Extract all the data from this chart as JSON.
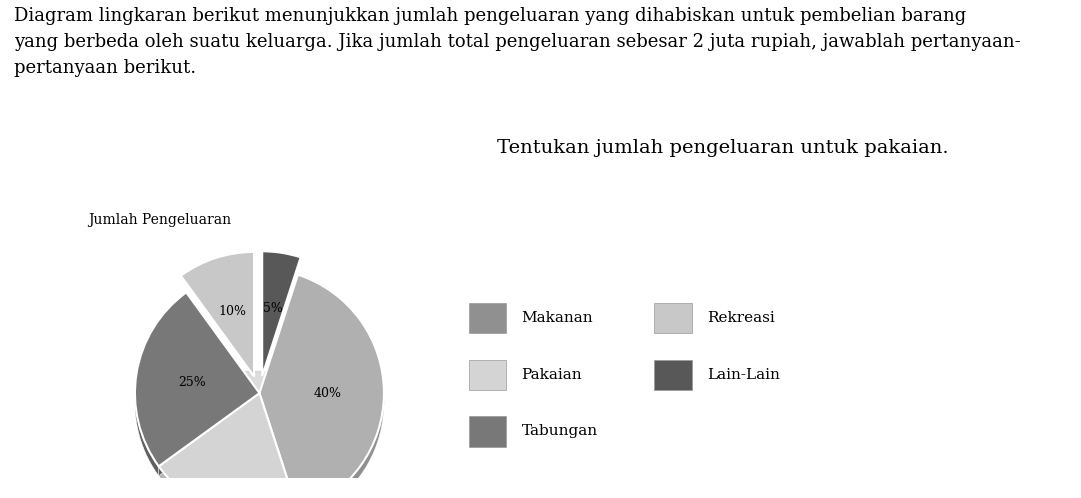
{
  "title_text": "Diagram lingkaran berikut menunjukkan jumlah pengeluaran yang dihabiskan untuk pembelian barang\nyang berbeda oleh suatu keluarga. Jika jumlah total pengeluaran sebesar 2 juta rupiah, jawablah pertanyaan-\npertanyaan berikut.",
  "pie_title": "Jumlah Pengeluaran",
  "question_text": "Tentukan jumlah pengeluaran untuk pakaian.",
  "labels": [
    "Makanan",
    "Pakaian",
    "Tabungan",
    "Rekreasi",
    "Lain-Lain"
  ],
  "sizes": [
    40,
    20,
    25,
    10,
    5
  ],
  "colors_top": [
    "#b0b0b0",
    "#d4d4d4",
    "#787878",
    "#c8c8c8",
    "#585858"
  ],
  "colors_side": [
    "#909090",
    "#b8b8b8",
    "#606060",
    "#b0b0b0",
    "#404040"
  ],
  "explode": [
    0,
    0,
    0,
    0.12,
    0.12
  ],
  "show_pct": [
    true,
    false,
    true,
    true,
    true
  ],
  "pct_labels": [
    "40%",
    "",
    "25%",
    "10%",
    "5%"
  ],
  "startangle": 72,
  "legend_labels_col1": [
    "Makanan",
    "Pakaian",
    "Tabungan"
  ],
  "legend_colors_col1": [
    "#909090",
    "#d4d4d4",
    "#787878"
  ],
  "legend_labels_col2": [
    "Rekreasi",
    "Lain-Lain"
  ],
  "legend_colors_col2": [
    "#c8c8c8",
    "#585858"
  ],
  "background_color": "#ffffff",
  "text_color": "#000000",
  "font_family": "serif",
  "title_fontsize": 13,
  "pie_title_fontsize": 10,
  "question_fontsize": 14,
  "pct_fontsize": 9,
  "depth": 0.065
}
